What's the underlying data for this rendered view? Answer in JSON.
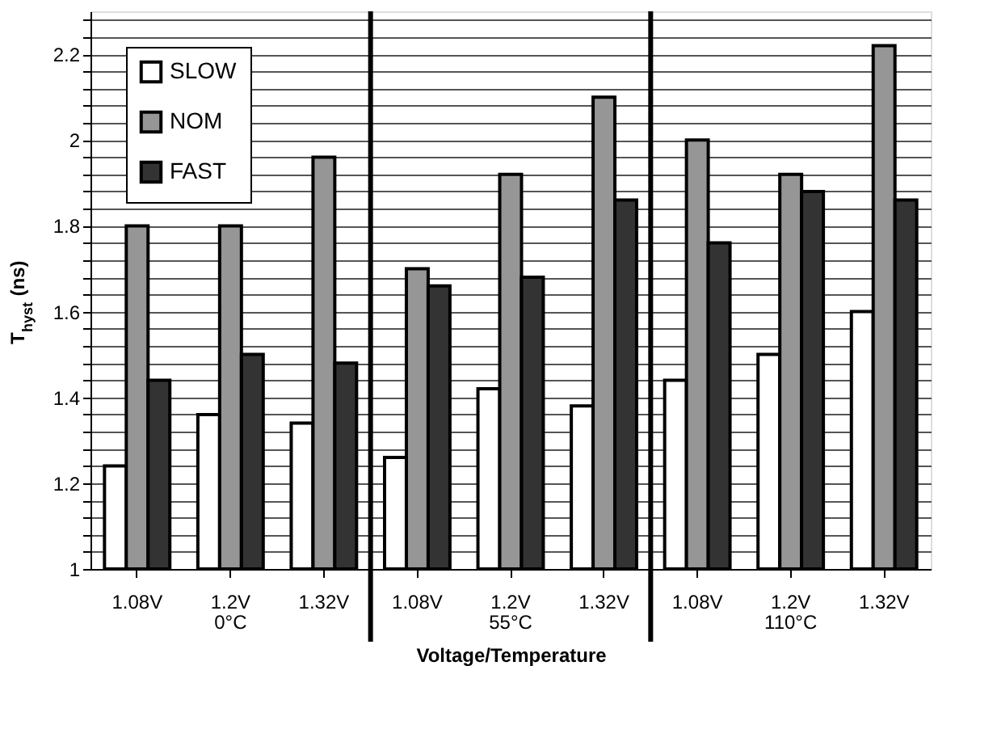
{
  "chart_data": {
    "type": "bar",
    "xlabel": "Voltage/Temperature",
    "ylabel": "T$_{hyst}$ (ns)",
    "categories": [
      "1.08V",
      "1.2V",
      "1.32V",
      "1.08V",
      "1.2V",
      "1.32V",
      "1.08V",
      "1.2V",
      "1.32V"
    ],
    "series": [
      {
        "name": "SLOW",
        "color": "#ffffff",
        "values": [
          1.24,
          1.36,
          1.34,
          1.26,
          1.42,
          1.38,
          1.44,
          1.5,
          1.6
        ]
      },
      {
        "name": "NOM",
        "color": "#969696",
        "values": [
          1.8,
          1.8,
          1.96,
          1.7,
          1.92,
          2.1,
          2.0,
          1.92,
          2.22
        ]
      },
      {
        "name": "FAST",
        "color": "#333333",
        "values": [
          1.44,
          1.5,
          1.48,
          1.66,
          1.68,
          1.86,
          1.76,
          1.88,
          1.86
        ]
      }
    ],
    "annotations": [
      "0°C",
      "55°C",
      "110°C"
    ],
    "ylim": [
      1,
      2.3
    ],
    "yticks": [
      1,
      {
        "value": 1.04,
        "label": null
      },
      {
        "value": 1.08,
        "label": null
      },
      {
        "value": 1.12,
        "label": null
      },
      {
        "value": 1.16,
        "label": null
      },
      1.2,
      {
        "value": 1.24,
        "label": null
      },
      {
        "value": 1.28,
        "label": null
      },
      {
        "value": 1.32,
        "label": null
      },
      {
        "value": 1.36,
        "label": null
      },
      1.4,
      {
        "value": 1.44,
        "label": null
      },
      {
        "value": 1.48,
        "label": null
      },
      {
        "value": 1.52,
        "label": null
      },
      {
        "value": 1.56,
        "label": null
      },
      1.6,
      {
        "value": 1.64,
        "label": null
      },
      {
        "value": 1.68,
        "label": null
      },
      {
        "value": 1.72,
        "label": null
      },
      {
        "value": 1.76,
        "label": null
      },
      1.8,
      {
        "value": 1.84,
        "label": null
      },
      {
        "value": 1.88,
        "label": null
      },
      {
        "value": 1.92,
        "label": null
      },
      {
        "value": 1.96,
        "label": null
      },
      2,
      {
        "value": 2.04,
        "label": null
      },
      {
        "value": 2.08,
        "label": null
      },
      {
        "value": 2.12,
        "label": null
      },
      {
        "value": 2.16,
        "label": null
      },
      2.2,
      {
        "value": 2.24,
        "label": null
      },
      {
        "value": 2.28,
        "label": null
      }
    ],
    "grid": "y",
    "legend": "top left"
  }
}
